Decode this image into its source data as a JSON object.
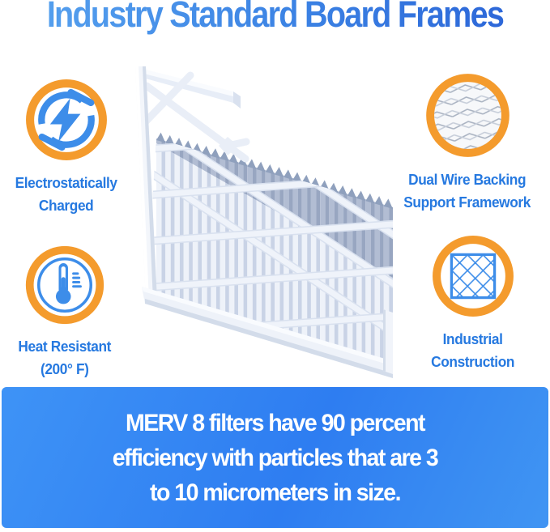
{
  "title": {
    "text": "Industry Standard Board Frames"
  },
  "features": [
    {
      "name": "electrostatically-charged",
      "icon": "lightning-bolt-circle-icon",
      "label_lines": [
        "Electrostatically",
        "Charged"
      ]
    },
    {
      "name": "heat-resistant",
      "icon": "thermometer-icon",
      "label_lines": [
        "Heat Resistant",
        "(200° F)"
      ]
    },
    {
      "name": "dual-wire-backing",
      "icon": "wire-mesh-icon",
      "label_lines": [
        "Dual Wire Backing",
        "Support Framework"
      ]
    },
    {
      "name": "industrial-construction",
      "icon": "diamond-lattice-icon",
      "label_lines": [
        "Industrial",
        "Construction"
      ]
    }
  ],
  "illustration": {
    "name": "pleated-air-filter"
  },
  "banner": {
    "lines": [
      "MERV 8 filters have 90 percent",
      "efficiency with particles that are 3",
      "to 10 micrometers in size."
    ]
  },
  "colors": {
    "title_blue_start": "#55a0ee",
    "title_blue_end": "#2c66d8",
    "label_blue": "#2679e0",
    "ring_orange": "#f49b2d",
    "icon_blue": "#3d8de9",
    "banner_blue": "#2e7df1",
    "banner_text": "#ffffff"
  }
}
